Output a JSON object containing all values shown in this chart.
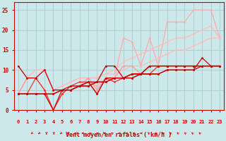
{
  "xlabel": "Vent moyen/en rafales ( km/h )",
  "background_color": "#cce8ea",
  "grid_color": "#aacccc",
  "xlim": [
    -0.5,
    23.5
  ],
  "ylim": [
    0,
    27
  ],
  "yticks": [
    0,
    5,
    10,
    15,
    20,
    25
  ],
  "xticks": [
    0,
    1,
    2,
    3,
    4,
    5,
    6,
    7,
    8,
    9,
    10,
    11,
    12,
    13,
    14,
    15,
    16,
    17,
    18,
    19,
    20,
    21,
    22,
    23
  ],
  "lines": [
    {
      "x": [
        0,
        1,
        2,
        3,
        4,
        5,
        6,
        7,
        8,
        9,
        10,
        11,
        12,
        13,
        14,
        15,
        16,
        17,
        18,
        19,
        20,
        21,
        22,
        23
      ],
      "y": [
        4,
        4,
        4,
        4,
        4,
        5,
        5,
        6,
        6,
        7,
        7,
        8,
        8,
        8,
        9,
        9,
        9,
        10,
        10,
        10,
        10,
        11,
        11,
        11
      ],
      "color": "#cc0000",
      "lw": 0.9,
      "ms": 2.0,
      "marker": "o",
      "zorder": 6
    },
    {
      "x": [
        0,
        1,
        2,
        3,
        4,
        5,
        6,
        7,
        8,
        9,
        10,
        11,
        12,
        13,
        14,
        15,
        16,
        17,
        18,
        19,
        20,
        21,
        22,
        23
      ],
      "y": [
        4,
        4,
        4,
        4,
        4,
        5,
        5,
        6,
        6,
        7,
        7,
        8,
        8,
        8,
        9,
        9,
        9,
        10,
        10,
        10,
        10,
        13,
        11,
        11
      ],
      "color": "#cc0000",
      "lw": 0.9,
      "ms": 2.0,
      "marker": "o",
      "zorder": 6
    },
    {
      "x": [
        0,
        1,
        2,
        3,
        4,
        5,
        6,
        7,
        8,
        9,
        10,
        11,
        12,
        13,
        14,
        15,
        16,
        17,
        18,
        19,
        20,
        21,
        22,
        23
      ],
      "y": [
        11,
        8,
        8,
        10,
        5,
        5,
        6,
        6,
        7,
        7,
        11,
        11,
        8,
        9,
        9,
        11,
        11,
        11,
        11,
        11,
        11,
        11,
        11,
        11
      ],
      "color": "#cc0000",
      "lw": 0.9,
      "ms": 2.0,
      "marker": "o",
      "zorder": 5
    },
    {
      "x": [
        0,
        1,
        2,
        3,
        4,
        5,
        6,
        7,
        8,
        9,
        10,
        11,
        12,
        13,
        14,
        15,
        16,
        17,
        18,
        19,
        20,
        21,
        22,
        23
      ],
      "y": [
        4,
        4,
        4,
        4,
        0,
        5,
        5,
        6,
        7,
        4,
        8,
        8,
        8,
        9,
        9,
        11,
        11,
        11,
        11,
        11,
        11,
        11,
        11,
        11
      ],
      "color": "#cc0000",
      "lw": 0.9,
      "ms": 2.0,
      "marker": "o",
      "zorder": 5
    },
    {
      "x": [
        0,
        1,
        2,
        3,
        4,
        5,
        6,
        7,
        8,
        9,
        10,
        11,
        12,
        13,
        14,
        15,
        16,
        17,
        18,
        19,
        20,
        21,
        22,
        23
      ],
      "y": [
        4,
        4,
        8,
        5,
        0,
        4,
        6,
        7,
        7,
        4,
        8,
        7,
        8,
        9,
        9,
        9,
        11,
        11,
        11,
        11,
        11,
        11,
        11,
        11
      ],
      "color": "#ee3333",
      "lw": 0.9,
      "ms": 2.0,
      "marker": "o",
      "zorder": 4
    },
    {
      "x": [
        0,
        1,
        2,
        3,
        4,
        5,
        6,
        7,
        8,
        9,
        10,
        11,
        12,
        13,
        14,
        15,
        16,
        17,
        18,
        19,
        20,
        21,
        22,
        23
      ],
      "y": [
        11,
        8,
        8,
        5,
        0,
        4,
        6,
        6,
        7,
        6,
        8,
        8,
        18,
        17,
        11,
        18,
        11,
        22,
        22,
        22,
        25,
        25,
        25,
        18
      ],
      "color": "#ffaaaa",
      "lw": 0.9,
      "ms": 2.0,
      "marker": "o",
      "zorder": 2
    },
    {
      "x": [
        0,
        1,
        2,
        3,
        4,
        5,
        6,
        7,
        8,
        9,
        10,
        11,
        12,
        13,
        14,
        15,
        16,
        17,
        18,
        19,
        20,
        21,
        22,
        23
      ],
      "y": [
        4,
        8,
        8,
        5,
        0,
        4,
        6,
        6,
        8,
        5,
        8,
        8,
        11,
        11,
        9,
        11,
        11,
        11,
        11,
        11,
        11,
        11,
        11,
        11
      ],
      "color": "#ff9999",
      "lw": 0.9,
      "ms": 2.0,
      "marker": "o",
      "zorder": 3
    },
    {
      "x": [
        0,
        1,
        2,
        3,
        4,
        5,
        6,
        7,
        8,
        9,
        10,
        11,
        12,
        13,
        14,
        15,
        16,
        17,
        18,
        19,
        20,
        21,
        22,
        23
      ],
      "y": [
        4,
        8,
        10,
        10,
        5,
        6,
        7,
        8,
        8,
        8,
        9,
        9,
        10,
        11,
        11,
        12,
        13,
        14,
        15,
        15,
        16,
        17,
        18,
        18
      ],
      "color": "#ffbbbb",
      "lw": 0.9,
      "ms": 2.0,
      "marker": "o",
      "zorder": 2
    },
    {
      "x": [
        0,
        1,
        2,
        3,
        4,
        5,
        6,
        7,
        8,
        9,
        10,
        11,
        12,
        13,
        14,
        15,
        16,
        17,
        18,
        19,
        20,
        21,
        22,
        23
      ],
      "y": [
        4,
        8,
        10,
        10,
        5,
        6,
        7,
        8,
        8,
        8,
        9,
        10,
        12,
        13,
        14,
        15,
        16,
        17,
        18,
        18,
        19,
        20,
        21,
        18
      ],
      "color": "#ffbbbb",
      "lw": 0.9,
      "ms": 2.0,
      "marker": "o",
      "zorder": 2
    }
  ],
  "arrow_angles": [
    225,
    225,
    180,
    180,
    225,
    270,
    270,
    270,
    315,
    270,
    270,
    315,
    270,
    270,
    270,
    270,
    315,
    315,
    315,
    315,
    315,
    315,
    315,
    315
  ],
  "color_dark_red": "#cc0000"
}
